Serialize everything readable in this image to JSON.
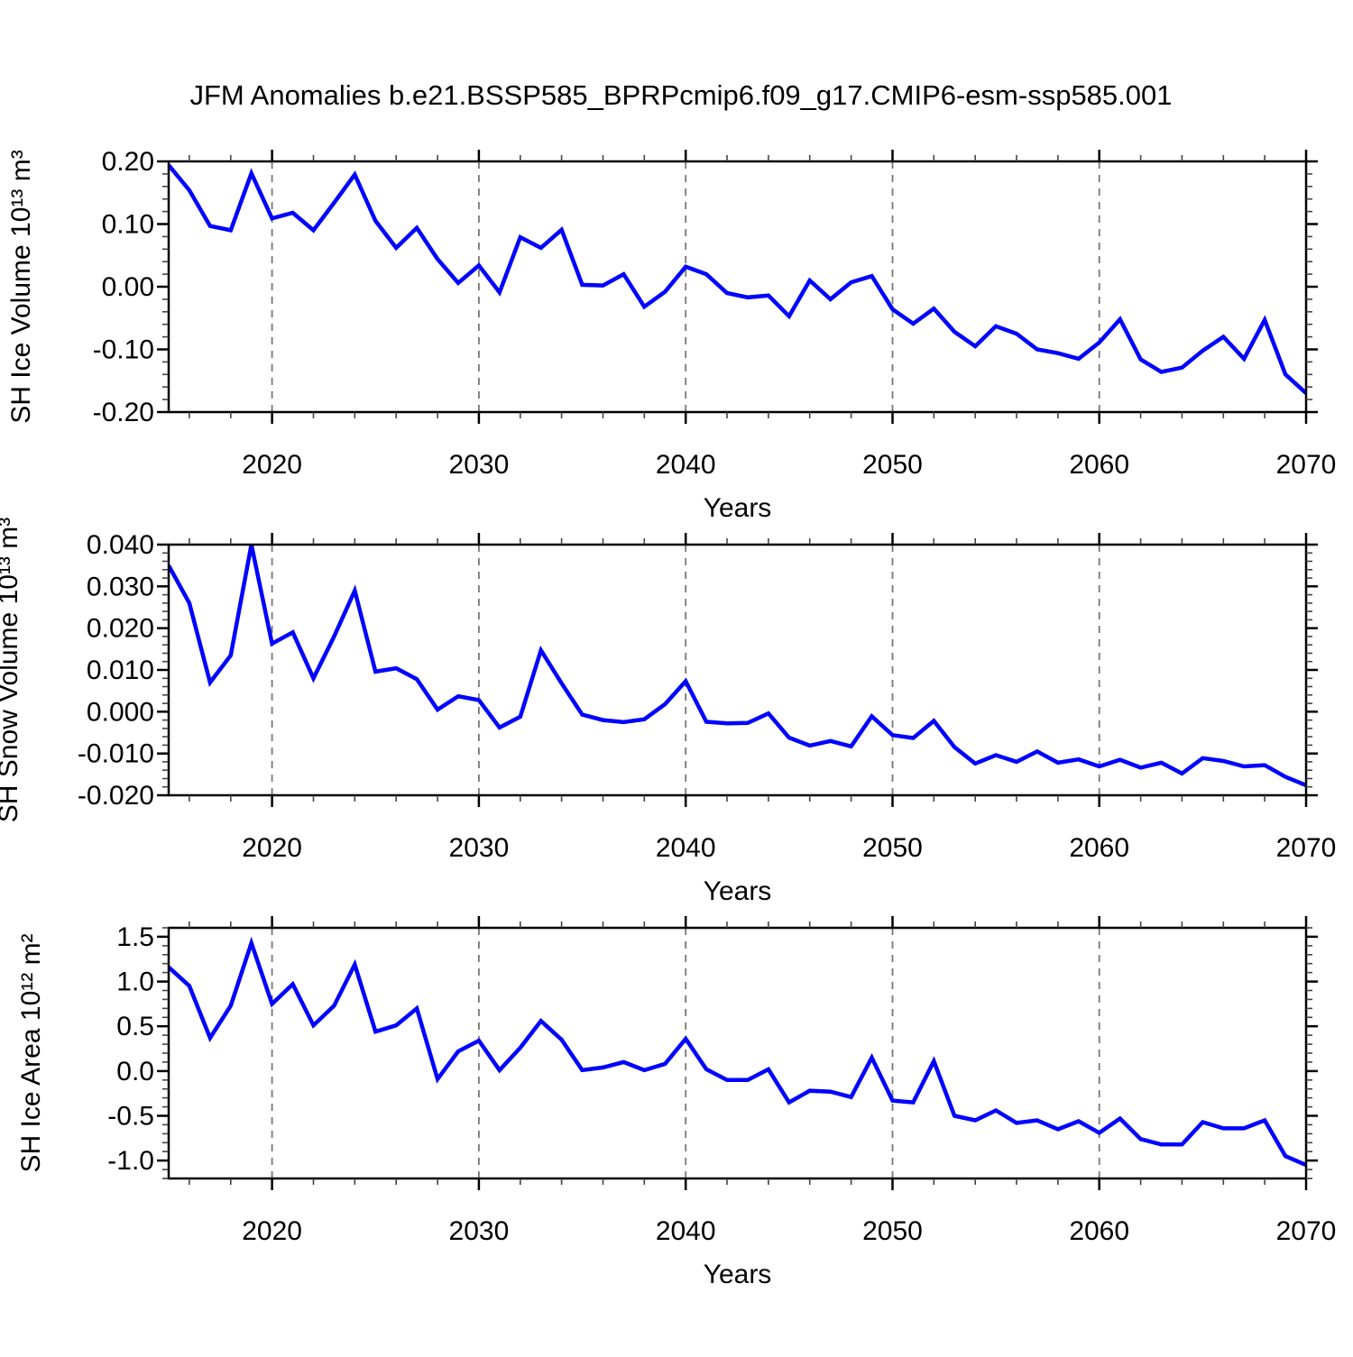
{
  "title": "JFM Anomalies b.e21.BSSP585_BPRPcmip6.f09_g17.CMIP6-esm-ssp585.001",
  "years": [
    2015,
    2016,
    2017,
    2018,
    2019,
    2020,
    2021,
    2022,
    2023,
    2024,
    2025,
    2026,
    2027,
    2028,
    2029,
    2030,
    2031,
    2032,
    2033,
    2034,
    2035,
    2036,
    2037,
    2038,
    2039,
    2040,
    2041,
    2042,
    2043,
    2044,
    2045,
    2046,
    2047,
    2048,
    2049,
    2050,
    2051,
    2052,
    2053,
    2054,
    2055,
    2056,
    2057,
    2058,
    2059,
    2060,
    2061,
    2062,
    2063,
    2064,
    2065,
    2066,
    2067,
    2068,
    2069,
    2070
  ],
  "line_color": "#0000ff",
  "chart_data": [
    {
      "type": "line",
      "series_name": "SH Ice Volume anomaly",
      "ylabel": "SH Ice Volume 10¹³ m³",
      "xlabel": "Years",
      "x_start": 2015,
      "x_end": 2070,
      "x_step": 1,
      "values": [
        0.194,
        0.154,
        0.097,
        0.09,
        0.181,
        0.109,
        0.118,
        0.09,
        0.134,
        0.179,
        0.105,
        0.062,
        0.094,
        0.044,
        0.006,
        0.034,
        -0.009,
        0.079,
        0.062,
        0.091,
        0.003,
        0.002,
        0.02,
        -0.032,
        -0.008,
        0.032,
        0.02,
        -0.01,
        -0.017,
        -0.014,
        -0.047,
        0.01,
        -0.02,
        0.007,
        0.017,
        -0.036,
        -0.059,
        -0.035,
        -0.072,
        -0.095,
        -0.063,
        -0.075,
        -0.1,
        -0.106,
        -0.115,
        -0.089,
        -0.052,
        -0.116,
        -0.136,
        -0.129,
        -0.102,
        -0.08,
        -0.115,
        -0.053,
        -0.14,
        -0.17
      ],
      "ylim": [
        -0.2,
        0.2
      ],
      "ytick_values": [
        0.2,
        0.1,
        0.0,
        -0.1,
        -0.2
      ],
      "ytick_labels": [
        "0.20",
        "0.10",
        "0.00",
        "-0.10",
        "-0.20"
      ],
      "y_minor_step": 0.02,
      "xlim": [
        2015,
        2070
      ],
      "xtick_values": [
        2020,
        2030,
        2040,
        2050,
        2060,
        2070
      ],
      "xtick_labels": [
        "2020",
        "2030",
        "2040",
        "2050",
        "2060",
        "2070"
      ],
      "x_minor_step": 2,
      "gridlines_x": [
        2020,
        2030,
        2040,
        2050,
        2060
      ],
      "grid": "vertical-dashed",
      "legend": "none"
    },
    {
      "type": "line",
      "series_name": "SH Snow Volume anomaly",
      "ylabel": "SH Snow Volume 10¹³ m³",
      "xlabel": "Years",
      "x_start": 2015,
      "x_end": 2070,
      "x_step": 1,
      "values": [
        0.035,
        0.026,
        0.007,
        0.0135,
        0.04,
        0.0163,
        0.019,
        0.008,
        0.018,
        0.029,
        0.0096,
        0.0104,
        0.0078,
        0.0005,
        0.0037,
        0.0028,
        -0.0038,
        -0.0012,
        0.0147,
        0.0068,
        -0.0007,
        -0.002,
        -0.0025,
        -0.0018,
        0.0018,
        0.0073,
        -0.0024,
        -0.0028,
        -0.0027,
        -0.0004,
        -0.0062,
        -0.0081,
        -0.007,
        -0.0083,
        -0.0011,
        -0.0056,
        -0.0063,
        -0.0022,
        -0.0085,
        -0.0124,
        -0.0104,
        -0.012,
        -0.0095,
        -0.0122,
        -0.0114,
        -0.0131,
        -0.0115,
        -0.0134,
        -0.0122,
        -0.0148,
        -0.0111,
        -0.0118,
        -0.0131,
        -0.0128,
        -0.0156,
        -0.0176
      ],
      "ylim": [
        -0.02,
        0.04
      ],
      "ytick_values": [
        0.04,
        0.03,
        0.02,
        0.01,
        0.0,
        -0.01,
        -0.02
      ],
      "ytick_labels": [
        "0.040",
        "0.030",
        "0.020",
        "0.010",
        "0.000",
        "-0.010",
        "-0.020"
      ],
      "y_minor_step": 0.002,
      "xlim": [
        2015,
        2070
      ],
      "xtick_values": [
        2020,
        2030,
        2040,
        2050,
        2060,
        2070
      ],
      "xtick_labels": [
        "2020",
        "2030",
        "2040",
        "2050",
        "2060",
        "2070"
      ],
      "x_minor_step": 2,
      "gridlines_x": [
        2020,
        2030,
        2040,
        2050,
        2060
      ],
      "grid": "vertical-dashed",
      "legend": "none"
    },
    {
      "type": "line",
      "series_name": "SH Ice Area anomaly",
      "ylabel": "SH Ice Area 10¹² m²",
      "xlabel": "Years",
      "x_start": 2015,
      "x_end": 2070,
      "x_step": 1,
      "values": [
        1.16,
        0.95,
        0.37,
        0.73,
        1.43,
        0.75,
        0.97,
        0.51,
        0.73,
        1.19,
        0.44,
        0.51,
        0.7,
        -0.09,
        0.22,
        0.34,
        0.01,
        0.26,
        0.56,
        0.35,
        0.01,
        0.04,
        0.1,
        0.01,
        0.08,
        0.36,
        0.02,
        -0.1,
        -0.1,
        0.02,
        -0.35,
        -0.22,
        -0.23,
        -0.29,
        0.15,
        -0.33,
        -0.35,
        0.11,
        -0.5,
        -0.55,
        -0.44,
        -0.58,
        -0.55,
        -0.65,
        -0.56,
        -0.69,
        -0.53,
        -0.76,
        -0.82,
        -0.82,
        -0.57,
        -0.64,
        -0.64,
        -0.55,
        -0.95,
        -1.05
      ],
      "ylim": [
        -1.2,
        1.6
      ],
      "ytick_values": [
        1.5,
        1.0,
        0.5,
        0.0,
        -0.5,
        -1.0
      ],
      "ytick_labels": [
        "1.5",
        "1.0",
        "0.5",
        "0.0",
        "-0.5",
        "-1.0"
      ],
      "y_minor_step": 0.1,
      "xlim": [
        2015,
        2070
      ],
      "xtick_values": [
        2020,
        2030,
        2040,
        2050,
        2060,
        2070
      ],
      "xtick_labels": [
        "2020",
        "2030",
        "2040",
        "2050",
        "2060",
        "2070"
      ],
      "x_minor_step": 2,
      "gridlines_x": [
        2020,
        2030,
        2040,
        2050,
        2060
      ],
      "grid": "vertical-dashed",
      "legend": "none"
    }
  ]
}
